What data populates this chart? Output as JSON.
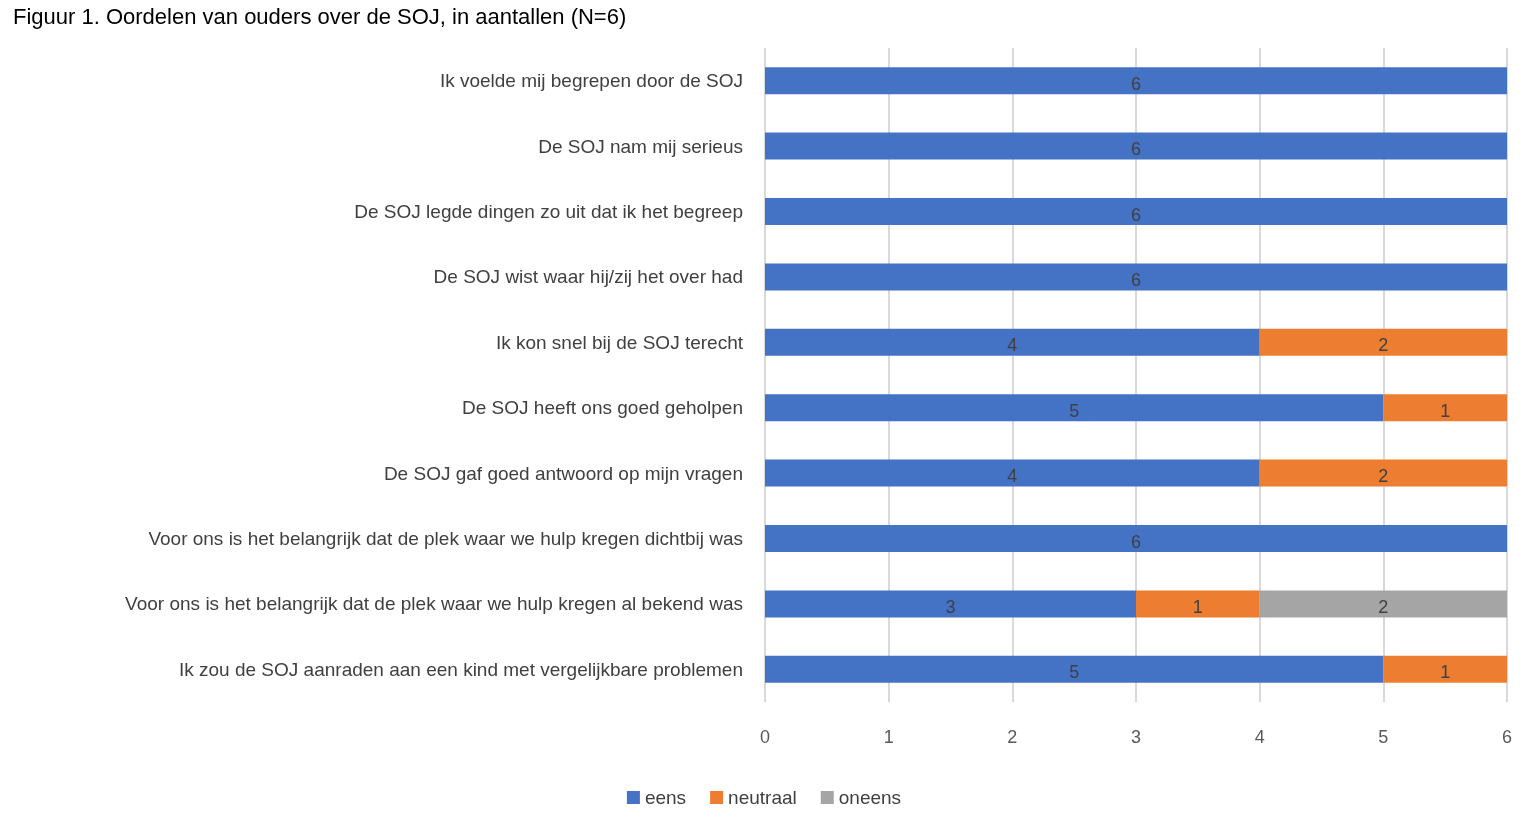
{
  "chart_data": {
    "type": "bar",
    "orientation": "horizontal",
    "stacked": true,
    "title": "Figuur 1. Oordelen van ouders over de SOJ, in aantallen (N=6)",
    "categories": [
      "Ik voelde mij begrepen door de SOJ",
      "De SOJ nam mij serieus",
      "De SOJ legde dingen zo uit dat ik het begreep",
      "De SOJ wist waar hij/zij het over had",
      "Ik kon snel bij de SOJ terecht",
      "De SOJ heeft ons goed geholpen",
      "De SOJ gaf goed antwoord op mijn vragen",
      "Voor ons is het belangrijk dat de plek waar we hulp kregen dichtbij was",
      "Voor ons is het belangrijk dat de plek waar we hulp kregen al bekend was",
      "Ik zou de SOJ aanraden aan een kind met vergelijkbare problemen"
    ],
    "series": [
      {
        "name": "eens",
        "color": "#4472c4",
        "values": [
          6,
          6,
          6,
          6,
          4,
          5,
          4,
          6,
          3,
          5
        ]
      },
      {
        "name": "neutraal",
        "color": "#ed7d31",
        "values": [
          null,
          null,
          null,
          null,
          2,
          1,
          2,
          null,
          1,
          1
        ]
      },
      {
        "name": "oneens",
        "color": "#a5a5a5",
        "values": [
          null,
          null,
          null,
          null,
          null,
          null,
          null,
          null,
          2,
          null
        ]
      }
    ],
    "xlim": [
      0,
      6
    ],
    "xticks": [
      0,
      1,
      2,
      3,
      4,
      5,
      6
    ],
    "grid": "x",
    "legend": "bottom",
    "data_labels": true
  }
}
